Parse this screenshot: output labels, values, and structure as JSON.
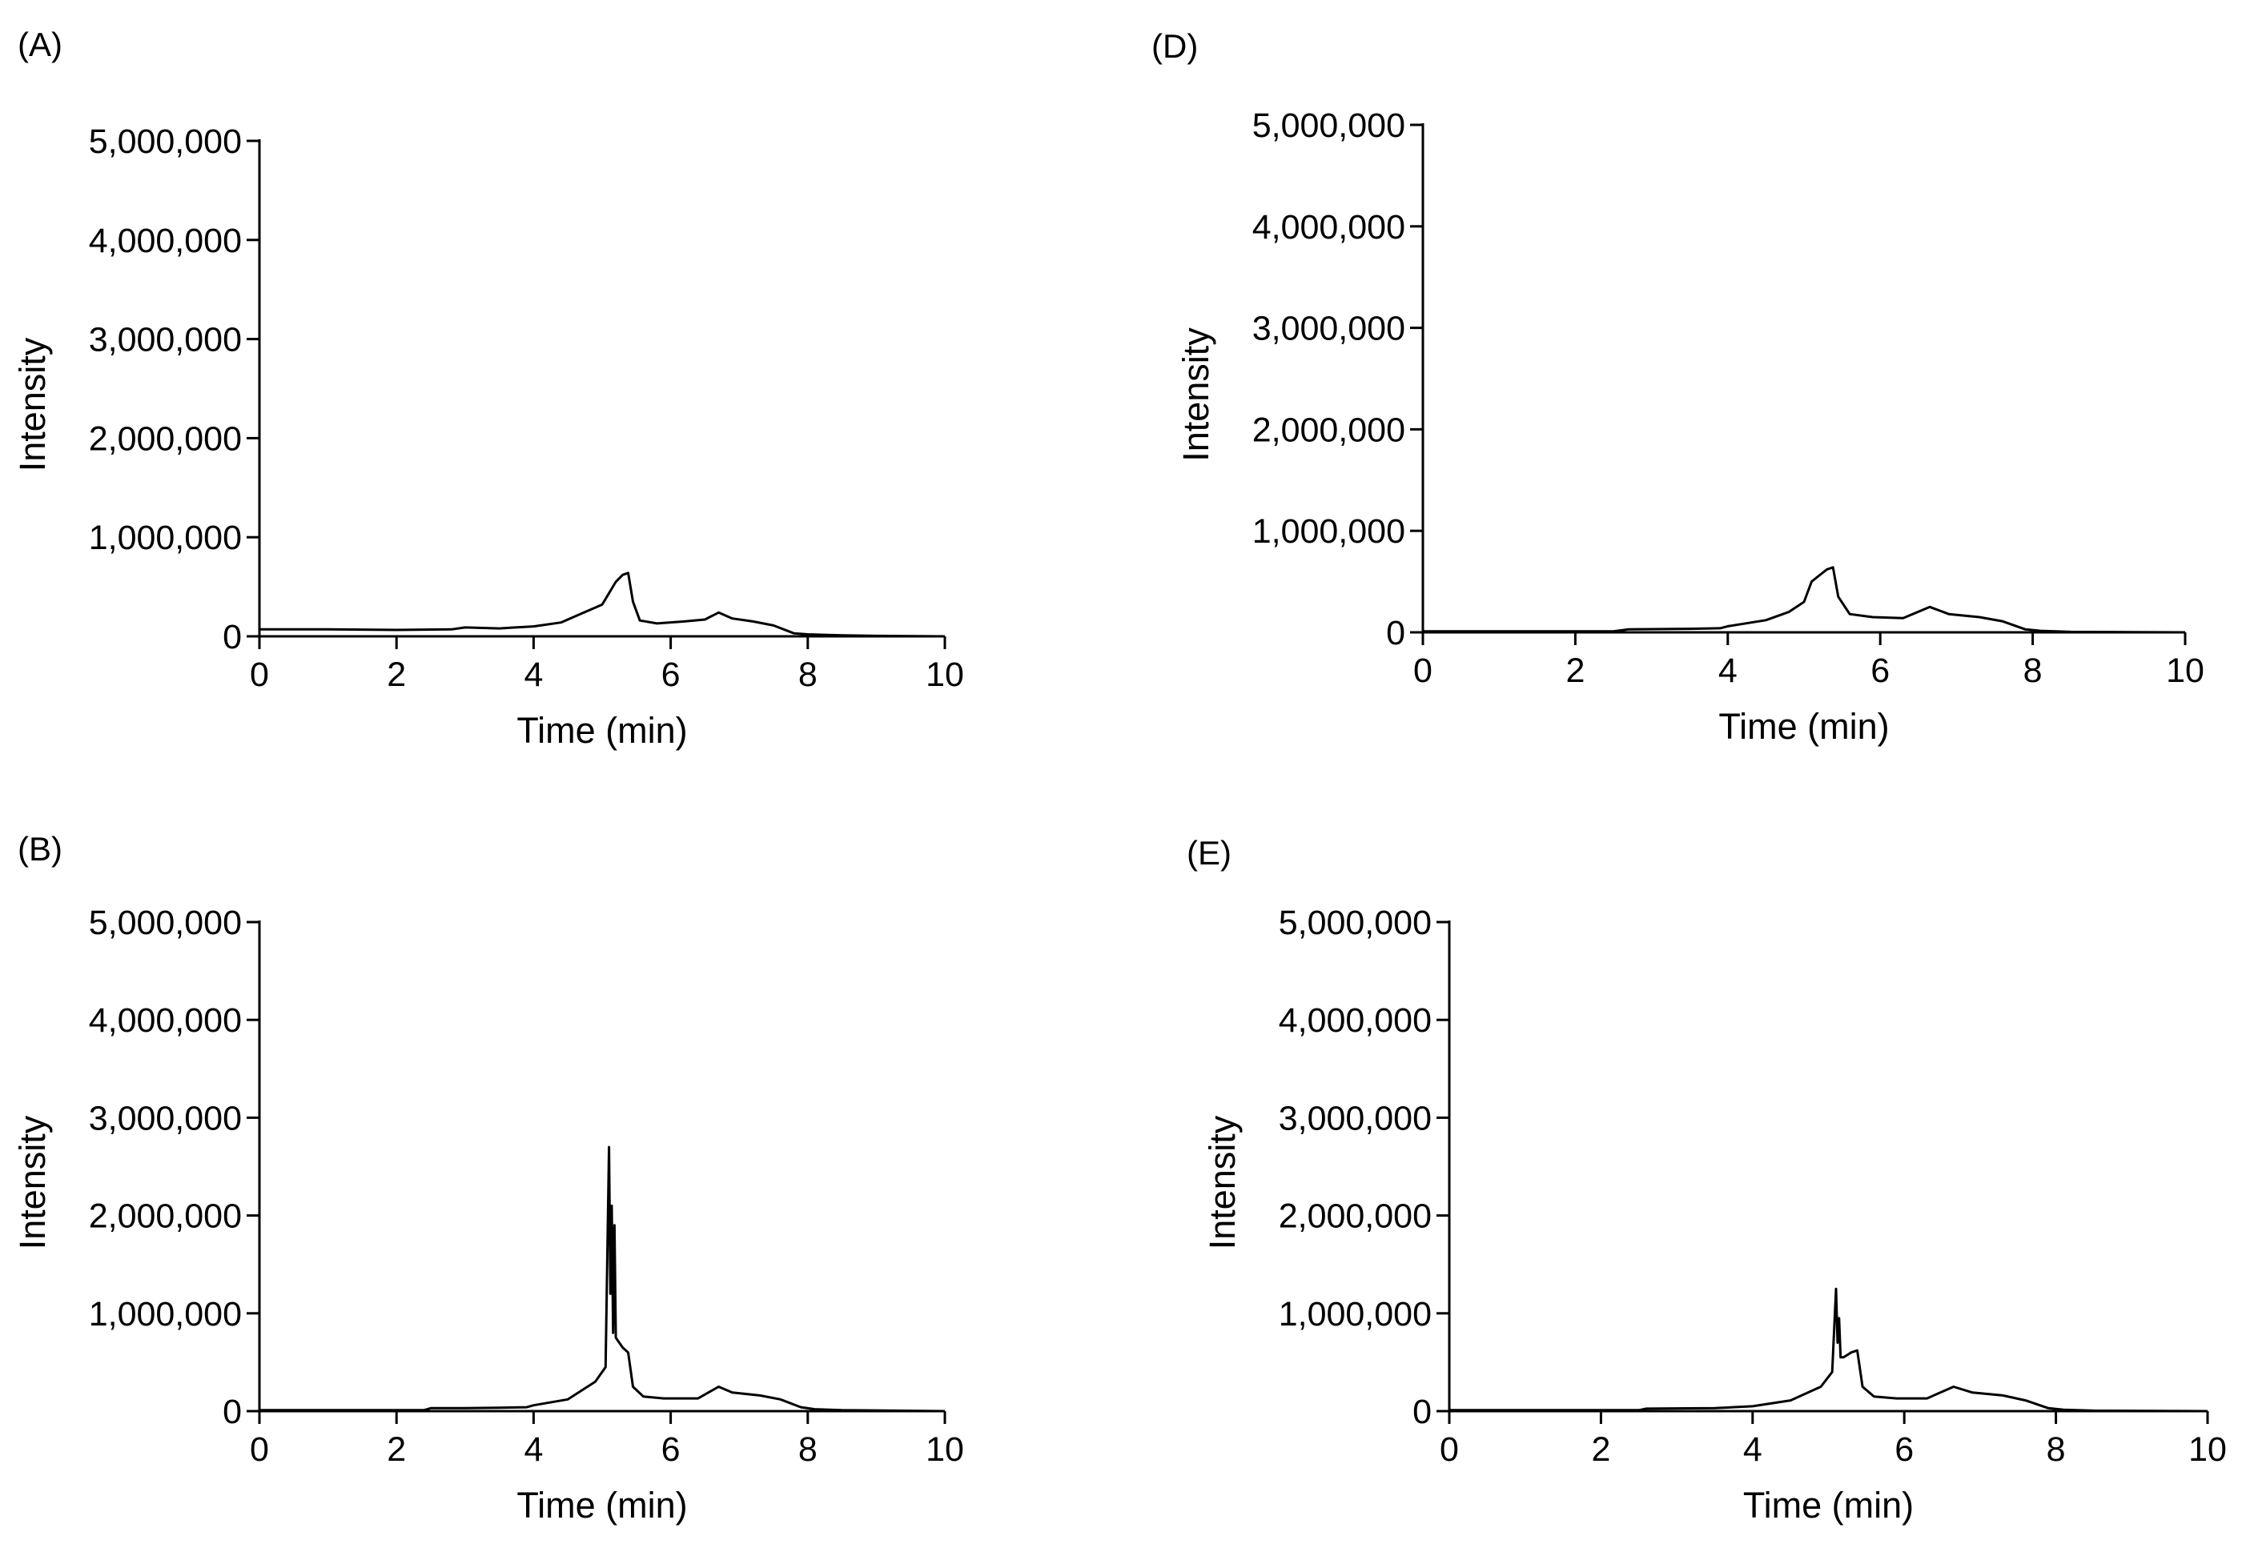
{
  "figure": {
    "type": "chromatogram-grid"
  },
  "chart_data": [
    {
      "panel": "(A)",
      "type": "line",
      "xlabel": "Time (min)",
      "ylabel": "Intensity",
      "xlim": [
        0,
        10
      ],
      "ylim": [
        0,
        5000000
      ],
      "x_ticks": [
        0,
        2,
        4,
        6,
        8,
        10
      ],
      "x_tick_labels": [
        "0",
        "2",
        "4",
        "6",
        "8",
        "10"
      ],
      "y_ticks": [
        0,
        1000000,
        2000000,
        3000000,
        4000000,
        5000000
      ],
      "y_tick_labels": [
        "0",
        "1,000,000",
        "2,000,000",
        "3,000,000",
        "4,000,000",
        "5,000,000"
      ],
      "series": [
        {
          "name": "trace",
          "x": [
            0,
            1,
            2,
            2.8,
            3.0,
            3.5,
            4.0,
            4.4,
            4.7,
            5.0,
            5.2,
            5.3,
            5.38,
            5.45,
            5.55,
            5.8,
            6.2,
            6.5,
            6.7,
            6.9,
            7.2,
            7.5,
            7.8,
            8.0,
            8.5,
            9.0,
            10
          ],
          "y": [
            70000,
            70000,
            65000,
            70000,
            90000,
            80000,
            100000,
            140000,
            230000,
            320000,
            550000,
            620000,
            640000,
            350000,
            160000,
            130000,
            150000,
            170000,
            240000,
            180000,
            150000,
            110000,
            30000,
            20000,
            10000,
            5000,
            0
          ]
        }
      ]
    },
    {
      "panel": "(B)",
      "type": "line",
      "xlabel": "Time (min)",
      "ylabel": "Intensity",
      "xlim": [
        0,
        10
      ],
      "ylim": [
        0,
        5000000
      ],
      "x_ticks": [
        0,
        2,
        4,
        6,
        8,
        10
      ],
      "x_tick_labels": [
        "0",
        "2",
        "4",
        "6",
        "8",
        "10"
      ],
      "y_ticks": [
        0,
        1000000,
        2000000,
        3000000,
        4000000,
        5000000
      ],
      "y_tick_labels": [
        "0",
        "1,000,000",
        "2,000,000",
        "3,000,000",
        "4,000,000",
        "5,000,000"
      ],
      "series": [
        {
          "name": "trace",
          "x": [
            0,
            2.4,
            2.5,
            3.0,
            3.5,
            3.9,
            4.0,
            4.5,
            4.9,
            5.05,
            5.1,
            5.12,
            5.14,
            5.16,
            5.18,
            5.2,
            5.3,
            5.38,
            5.45,
            5.6,
            5.9,
            6.4,
            6.7,
            6.9,
            7.3,
            7.6,
            7.9,
            8.1,
            8.5,
            10
          ],
          "y": [
            10000,
            10000,
            30000,
            30000,
            35000,
            40000,
            60000,
            120000,
            300000,
            450000,
            2700000,
            1200000,
            2100000,
            800000,
            1900000,
            750000,
            650000,
            600000,
            250000,
            150000,
            130000,
            130000,
            250000,
            190000,
            160000,
            120000,
            40000,
            20000,
            10000,
            0
          ]
        }
      ]
    },
    {
      "panel": "(D)",
      "type": "line",
      "xlabel": "Time (min)",
      "ylabel": "Intensity",
      "xlim": [
        0,
        10
      ],
      "ylim": [
        0,
        5000000
      ],
      "x_ticks": [
        0,
        2,
        4,
        6,
        8,
        10
      ],
      "x_tick_labels": [
        "0",
        "2",
        "4",
        "6",
        "8",
        "10"
      ],
      "y_ticks": [
        0,
        1000000,
        2000000,
        3000000,
        4000000,
        5000000
      ],
      "y_tick_labels": [
        "0",
        "1,000,000",
        "2,000,000",
        "3,000,000",
        "4,000,000",
        "5,000,000"
      ],
      "series": [
        {
          "name": "trace",
          "x": [
            0,
            1.5,
            2.5,
            2.7,
            3.5,
            3.9,
            4.0,
            4.5,
            4.8,
            5.0,
            5.1,
            5.2,
            5.3,
            5.38,
            5.45,
            5.6,
            5.9,
            6.3,
            6.65,
            6.9,
            7.3,
            7.6,
            7.9,
            8.1,
            8.5,
            10
          ],
          "y": [
            10000,
            10000,
            10000,
            30000,
            35000,
            40000,
            60000,
            120000,
            200000,
            300000,
            500000,
            560000,
            620000,
            640000,
            350000,
            180000,
            150000,
            140000,
            250000,
            180000,
            150000,
            110000,
            30000,
            15000,
            5000,
            0
          ]
        }
      ]
    },
    {
      "panel": "(E)",
      "type": "line",
      "xlabel": "Time (min)",
      "ylabel": "Intensity",
      "xlim": [
        0,
        10
      ],
      "ylim": [
        0,
        5000000
      ],
      "x_ticks": [
        0,
        2,
        4,
        6,
        8,
        10
      ],
      "x_tick_labels": [
        "0",
        "2",
        "4",
        "6",
        "8",
        "10"
      ],
      "y_ticks": [
        0,
        1000000,
        2000000,
        3000000,
        4000000,
        5000000
      ],
      "y_tick_labels": [
        "0",
        "1,000,000",
        "2,000,000",
        "3,000,000",
        "4,000,000",
        "5,000,000"
      ],
      "series": [
        {
          "name": "trace",
          "x": [
            0,
            0.8,
            2.5,
            2.6,
            3.5,
            4.0,
            4.5,
            4.9,
            5.05,
            5.1,
            5.12,
            5.14,
            5.16,
            5.2,
            5.3,
            5.38,
            5.45,
            5.6,
            5.9,
            6.3,
            6.65,
            6.9,
            7.3,
            7.6,
            7.9,
            8.1,
            8.5,
            10
          ],
          "y": [
            10000,
            10000,
            10000,
            25000,
            30000,
            50000,
            110000,
            250000,
            400000,
            1250000,
            700000,
            950000,
            550000,
            550000,
            600000,
            620000,
            250000,
            150000,
            130000,
            130000,
            250000,
            190000,
            160000,
            110000,
            30000,
            15000,
            5000,
            0
          ]
        }
      ]
    }
  ]
}
